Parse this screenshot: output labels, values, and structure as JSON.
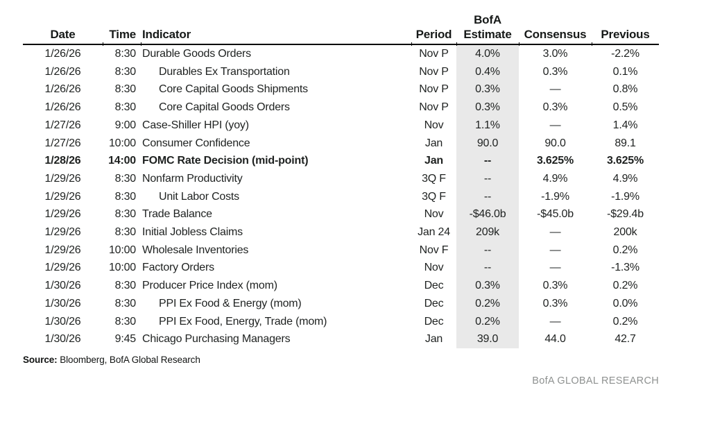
{
  "chart_data": {
    "type": "table",
    "columns": [
      "Date",
      "Time",
      "Indicator",
      "Period",
      "BofA Estimate",
      "Consensus",
      "Previous"
    ],
    "headers": {
      "date": "Date",
      "time": "Time",
      "indicator": "Indicator",
      "period": "Period",
      "estimate_line1": "BofA",
      "estimate_line2": "Estimate",
      "consensus": "Consensus",
      "previous": "Previous"
    },
    "rows": [
      {
        "date": "1/26/26",
        "time": "8:30",
        "indicator": "Durable Goods Orders",
        "indent": false,
        "bold": false,
        "period": "Nov P",
        "estimate": "4.0%",
        "consensus": "3.0%",
        "previous": "-2.2%"
      },
      {
        "date": "1/26/26",
        "time": "8:30",
        "indicator": "Durables Ex Transportation",
        "indent": true,
        "bold": false,
        "period": "Nov P",
        "estimate": "0.4%",
        "consensus": "0.3%",
        "previous": "0.1%"
      },
      {
        "date": "1/26/26",
        "time": "8:30",
        "indicator": "Core Capital Goods Shipments",
        "indent": true,
        "bold": false,
        "period": "Nov P",
        "estimate": "0.3%",
        "consensus": "—",
        "previous": "0.8%"
      },
      {
        "date": "1/26/26",
        "time": "8:30",
        "indicator": "Core Capital Goods Orders",
        "indent": true,
        "bold": false,
        "period": "Nov P",
        "estimate": "0.3%",
        "consensus": "0.3%",
        "previous": "0.5%"
      },
      {
        "date": "1/27/26",
        "time": "9:00",
        "indicator": "Case-Shiller HPI (yoy)",
        "indent": false,
        "bold": false,
        "period": "Nov",
        "estimate": "1.1%",
        "consensus": "—",
        "previous": "1.4%"
      },
      {
        "date": "1/27/26",
        "time": "10:00",
        "indicator": "Consumer Confidence",
        "indent": false,
        "bold": false,
        "period": "Jan",
        "estimate": "90.0",
        "consensus": "90.0",
        "previous": "89.1"
      },
      {
        "date": "1/28/26",
        "time": "14:00",
        "indicator": "FOMC Rate Decision (mid-point)",
        "indent": false,
        "bold": true,
        "period": "Jan",
        "estimate": "--",
        "consensus": "3.625%",
        "previous": "3.625%"
      },
      {
        "date": "1/29/26",
        "time": "8:30",
        "indicator": "Nonfarm Productivity",
        "indent": false,
        "bold": false,
        "period": "3Q F",
        "estimate": "--",
        "consensus": "4.9%",
        "previous": "4.9%"
      },
      {
        "date": "1/29/26",
        "time": "8:30",
        "indicator": "Unit Labor Costs",
        "indent": true,
        "bold": false,
        "period": "3Q F",
        "estimate": "--",
        "consensus": "-1.9%",
        "previous": "-1.9%"
      },
      {
        "date": "1/29/26",
        "time": "8:30",
        "indicator": "Trade Balance",
        "indent": false,
        "bold": false,
        "period": "Nov",
        "estimate": "-$46.0b",
        "consensus": "-$45.0b",
        "previous": "-$29.4b"
      },
      {
        "date": "1/29/26",
        "time": "8:30",
        "indicator": "Initial Jobless Claims",
        "indent": false,
        "bold": false,
        "period": "Jan 24",
        "estimate": "209k",
        "consensus": "—",
        "previous": "200k"
      },
      {
        "date": "1/29/26",
        "time": "10:00",
        "indicator": "Wholesale Inventories",
        "indent": false,
        "bold": false,
        "period": "Nov F",
        "estimate": "--",
        "consensus": "—",
        "previous": "0.2%"
      },
      {
        "date": "1/29/26",
        "time": "10:00",
        "indicator": "Factory Orders",
        "indent": false,
        "bold": false,
        "period": "Nov",
        "estimate": "--",
        "consensus": "—",
        "previous": "-1.3%"
      },
      {
        "date": "1/30/26",
        "time": "8:30",
        "indicator": "Producer Price Index (mom)",
        "indent": false,
        "bold": false,
        "period": "Dec",
        "estimate": "0.3%",
        "consensus": "0.3%",
        "previous": "0.2%"
      },
      {
        "date": "1/30/26",
        "time": "8:30",
        "indicator": "PPI Ex Food & Energy (mom)",
        "indent": true,
        "bold": false,
        "period": "Dec",
        "estimate": "0.2%",
        "consensus": "0.3%",
        "previous": "0.0%"
      },
      {
        "date": "1/30/26",
        "time": "8:30",
        "indicator": "PPI Ex Food, Energy, Trade (mom)",
        "indent": true,
        "bold": false,
        "period": "Dec",
        "estimate": "0.2%",
        "consensus": "—",
        "previous": "0.2%"
      },
      {
        "date": "1/30/26",
        "time": "9:45",
        "indicator": "Chicago Purchasing Managers",
        "indent": false,
        "bold": false,
        "period": "Jan",
        "estimate": "39.0",
        "consensus": "44.0",
        "previous": "42.7"
      }
    ]
  },
  "footer": {
    "source_label": "Source:",
    "source_text": " Bloomberg, BofA Global Research",
    "brand": "BofA GLOBAL RESEARCH"
  },
  "colors": {
    "text": "#1e2120",
    "estimate_shade": "#e9e9e9",
    "rule": "#000000",
    "brand_text": "#8e9190"
  }
}
